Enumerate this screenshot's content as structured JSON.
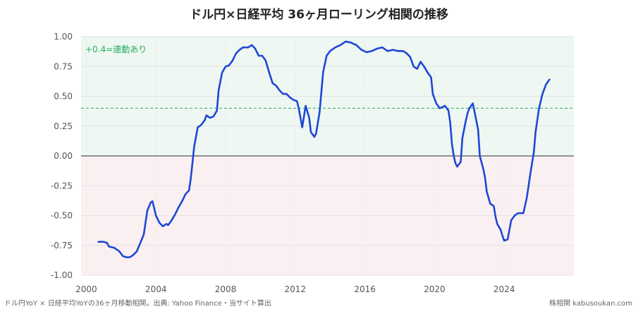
{
  "title": "ドル円×日経平均 36ヶ月ローリング相関の推移",
  "footer_left": "ドル円YoY × 日経平均YoYの36ヶ月移動相関。出典: Yahoo Finance・当サイト算出",
  "footer_right": "株相関 kabusoukan.com",
  "threshold_label": "+0.4=連動あり",
  "colors": {
    "line": "#1f47d6",
    "threshold": "#27ae60",
    "positive_band": "#eef7f2",
    "negative_band": "#fbf0f1",
    "zero_line": "#555555"
  },
  "chart_data": {
    "type": "line",
    "title": "ドル円×日経平均 36ヶ月ローリング相関の推移",
    "xlabel": "",
    "ylabel": "",
    "xlim": [
      1999.7,
      2028.0
    ],
    "ylim": [
      -1.0,
      1.0
    ],
    "xticks": [
      "2000",
      "2004",
      "2008",
      "2012",
      "2016",
      "2020",
      "2024"
    ],
    "yticks": [
      "1.00",
      "0.75",
      "0.50",
      "0.25",
      "0.00",
      "-0.25",
      "-0.50",
      "-0.75",
      "-1.00"
    ],
    "grid": true,
    "threshold": 0.4,
    "series": [
      {
        "points": [
          [
            2000.7,
            -0.72
          ],
          [
            2001.0,
            -0.72
          ],
          [
            2001.2,
            -0.73
          ],
          [
            2001.3,
            -0.76
          ],
          [
            2001.6,
            -0.77
          ],
          [
            2001.9,
            -0.8
          ],
          [
            2002.1,
            -0.84
          ],
          [
            2002.3,
            -0.85
          ],
          [
            2002.5,
            -0.85
          ],
          [
            2002.7,
            -0.83
          ],
          [
            2002.9,
            -0.8
          ],
          [
            2003.1,
            -0.73
          ],
          [
            2003.3,
            -0.66
          ],
          [
            2003.5,
            -0.46
          ],
          [
            2003.7,
            -0.39
          ],
          [
            2003.8,
            -0.38
          ],
          [
            2004.0,
            -0.5
          ],
          [
            2004.2,
            -0.56
          ],
          [
            2004.4,
            -0.59
          ],
          [
            2004.6,
            -0.57
          ],
          [
            2004.7,
            -0.58
          ],
          [
            2004.9,
            -0.54
          ],
          [
            2005.1,
            -0.49
          ],
          [
            2005.3,
            -0.43
          ],
          [
            2005.5,
            -0.38
          ],
          [
            2005.7,
            -0.32
          ],
          [
            2005.9,
            -0.29
          ],
          [
            2006.0,
            -0.19
          ],
          [
            2006.2,
            0.08
          ],
          [
            2006.4,
            0.24
          ],
          [
            2006.6,
            0.26
          ],
          [
            2006.8,
            0.3
          ],
          [
            2006.9,
            0.34
          ],
          [
            2007.1,
            0.32
          ],
          [
            2007.3,
            0.33
          ],
          [
            2007.5,
            0.38
          ],
          [
            2007.6,
            0.55
          ],
          [
            2007.8,
            0.7
          ],
          [
            2008.0,
            0.75
          ],
          [
            2008.2,
            0.76
          ],
          [
            2008.4,
            0.8
          ],
          [
            2008.6,
            0.86
          ],
          [
            2008.8,
            0.89
          ],
          [
            2009.0,
            0.91
          ],
          [
            2009.3,
            0.91
          ],
          [
            2009.5,
            0.93
          ],
          [
            2009.7,
            0.9
          ],
          [
            2009.9,
            0.84
          ],
          [
            2010.1,
            0.84
          ],
          [
            2010.3,
            0.8
          ],
          [
            2010.5,
            0.7
          ],
          [
            2010.7,
            0.61
          ],
          [
            2010.9,
            0.59
          ],
          [
            2011.1,
            0.55
          ],
          [
            2011.3,
            0.52
          ],
          [
            2011.5,
            0.52
          ],
          [
            2011.7,
            0.49
          ],
          [
            2011.9,
            0.47
          ],
          [
            2012.1,
            0.46
          ],
          [
            2012.2,
            0.4
          ],
          [
            2012.4,
            0.24
          ],
          [
            2012.6,
            0.42
          ],
          [
            2012.8,
            0.32
          ],
          [
            2012.9,
            0.2
          ],
          [
            2013.1,
            0.16
          ],
          [
            2013.2,
            0.19
          ],
          [
            2013.4,
            0.37
          ],
          [
            2013.6,
            0.7
          ],
          [
            2013.8,
            0.84
          ],
          [
            2014.0,
            0.88
          ],
          [
            2014.3,
            0.91
          ],
          [
            2014.6,
            0.93
          ],
          [
            2014.9,
            0.96
          ],
          [
            2015.2,
            0.95
          ],
          [
            2015.5,
            0.93
          ],
          [
            2015.8,
            0.89
          ],
          [
            2016.1,
            0.87
          ],
          [
            2016.4,
            0.88
          ],
          [
            2016.7,
            0.9
          ],
          [
            2017.0,
            0.91
          ],
          [
            2017.3,
            0.88
          ],
          [
            2017.6,
            0.89
          ],
          [
            2017.9,
            0.88
          ],
          [
            2018.2,
            0.88
          ],
          [
            2018.4,
            0.86
          ],
          [
            2018.6,
            0.83
          ],
          [
            2018.8,
            0.75
          ],
          [
            2019.0,
            0.73
          ],
          [
            2019.2,
            0.79
          ],
          [
            2019.4,
            0.75
          ],
          [
            2019.6,
            0.7
          ],
          [
            2019.8,
            0.66
          ],
          [
            2019.9,
            0.52
          ],
          [
            2020.1,
            0.44
          ],
          [
            2020.3,
            0.4
          ],
          [
            2020.6,
            0.42
          ],
          [
            2020.8,
            0.38
          ],
          [
            2020.9,
            0.28
          ],
          [
            2021.0,
            0.1
          ],
          [
            2021.1,
            0.0
          ],
          [
            2021.2,
            -0.06
          ],
          [
            2021.3,
            -0.09
          ],
          [
            2021.5,
            -0.05
          ],
          [
            2021.6,
            0.15
          ],
          [
            2021.8,
            0.3
          ],
          [
            2021.9,
            0.36
          ],
          [
            2022.0,
            0.4
          ],
          [
            2022.2,
            0.44
          ],
          [
            2022.3,
            0.37
          ],
          [
            2022.5,
            0.22
          ],
          [
            2022.6,
            0.0
          ],
          [
            2022.8,
            -0.11
          ],
          [
            2022.9,
            -0.18
          ],
          [
            2023.0,
            -0.3
          ],
          [
            2023.2,
            -0.4
          ],
          [
            2023.4,
            -0.42
          ],
          [
            2023.5,
            -0.51
          ],
          [
            2023.6,
            -0.57
          ],
          [
            2023.8,
            -0.62
          ],
          [
            2023.9,
            -0.67
          ],
          [
            2024.0,
            -0.71
          ],
          [
            2024.2,
            -0.7
          ],
          [
            2024.3,
            -0.62
          ],
          [
            2024.4,
            -0.54
          ],
          [
            2024.6,
            -0.5
          ],
          [
            2024.8,
            -0.48
          ],
          [
            2024.9,
            -0.48
          ],
          [
            2025.1,
            -0.48
          ],
          [
            2025.3,
            -0.35
          ],
          [
            2025.5,
            -0.15
          ],
          [
            2025.7,
            0.03
          ],
          [
            2025.8,
            0.2
          ],
          [
            2026.0,
            0.4
          ],
          [
            2026.2,
            0.52
          ],
          [
            2026.4,
            0.6
          ],
          [
            2026.6,
            0.64
          ]
        ]
      }
    ]
  }
}
